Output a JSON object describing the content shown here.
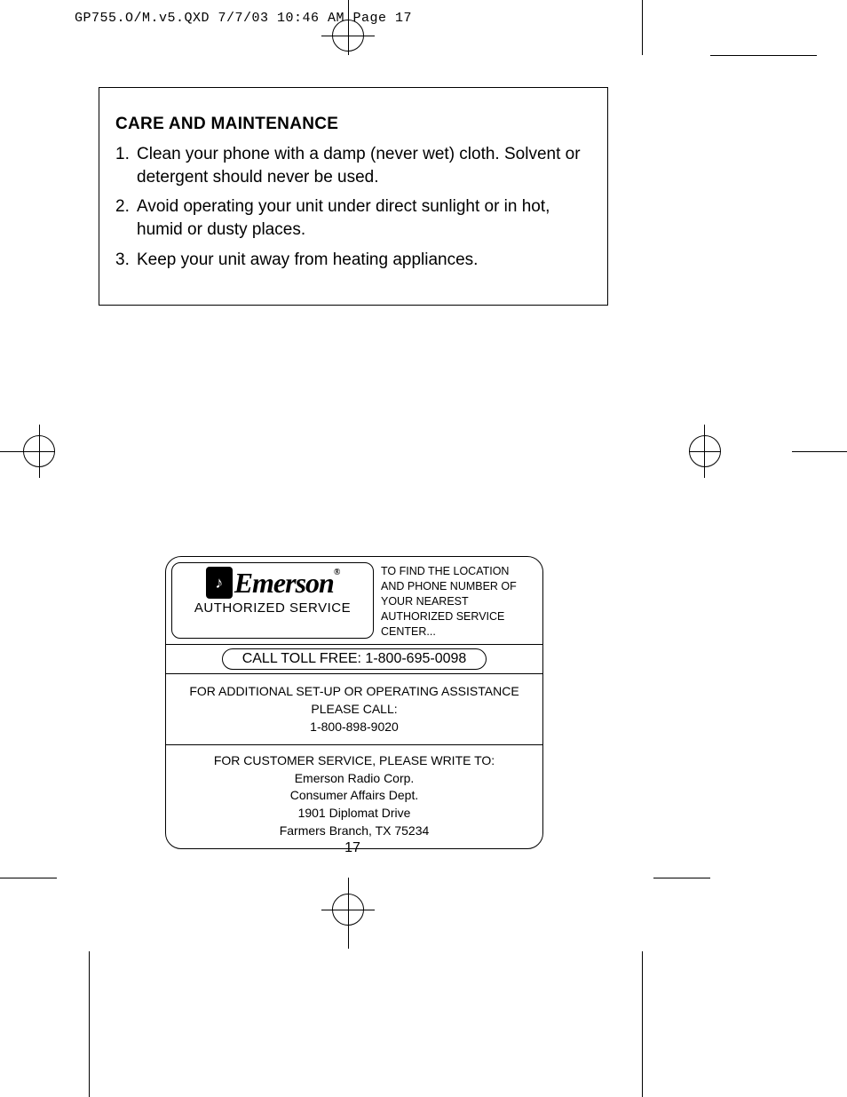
{
  "header": "GP755.O/M.v5.QXD  7/7/03  10:46 AM  Page 17",
  "section_title": "CARE AND MAINTENANCE",
  "items": [
    {
      "n": "1.",
      "t": "Clean your phone with a damp (never wet) cloth. Solvent or detergent should never be used."
    },
    {
      "n": "2.",
      "t": "Avoid operating your unit under direct sunlight or in hot, humid or dusty places."
    },
    {
      "n": "3.",
      "t": "Keep your unit away from heating appliances."
    }
  ],
  "logo": {
    "brand": "Emerson",
    "reg": "®",
    "auth": "AUTHORIZED SERVICE",
    "glyph": "♪"
  },
  "find_text": "TO FIND THE LOCATION AND PHONE NUMBER OF YOUR NEAREST AUTHORIZED SERVICE CENTER...",
  "toll_free": "CALL TOLL FREE: 1-800-695-0098",
  "assist": {
    "l1": "FOR ADDITIONAL SET-UP OR OPERATING ASSISTANCE",
    "l2": "PLEASE CALL:",
    "l3": "1-800-898-9020"
  },
  "addr": {
    "l1": "FOR CUSTOMER SERVICE, PLEASE WRITE TO:",
    "l2": "Emerson Radio Corp.",
    "l3": "Consumer Affairs Dept.",
    "l4": "1901 Diplomat Drive",
    "l5": "Farmers Branch, TX 75234"
  },
  "page_number": "17",
  "colors": {
    "fg": "#000000",
    "bg": "#ffffff"
  }
}
